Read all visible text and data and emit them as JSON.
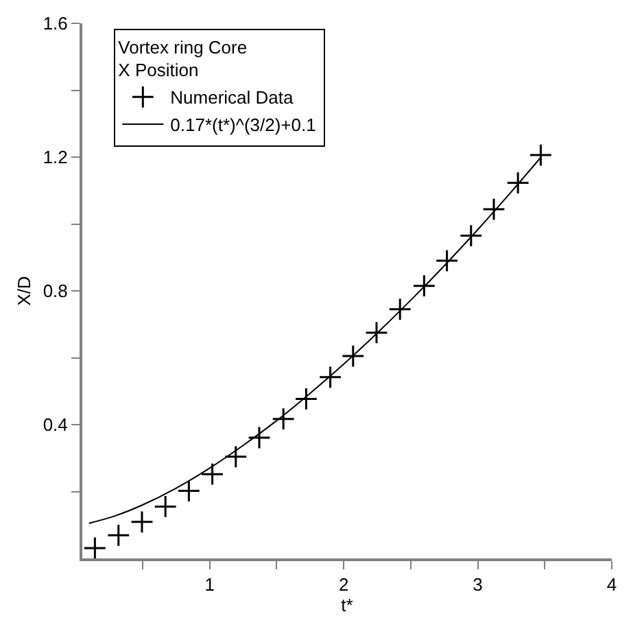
{
  "chart_data": {
    "type": "scatter",
    "xlabel": "t*",
    "ylabel": "X/D",
    "legend_title": "Vortex ring Core\nX Position",
    "xlim": [
      0.05,
      4
    ],
    "xticks": [
      {
        "value": 0.5,
        "label": null
      },
      1,
      {
        "value": 1.5,
        "label": null
      },
      2,
      {
        "value": 2.5,
        "label": null
      },
      3,
      {
        "value": 3.5,
        "label": null
      },
      4
    ],
    "ylim": [
      0,
      1.6
    ],
    "yticks": [
      {
        "value": 0.2,
        "label": null
      },
      0.4,
      {
        "value": 0.6,
        "label": null
      },
      0.8,
      {
        "value": 1.0,
        "label": null
      },
      1.2,
      {
        "value": 1.4,
        "label": null
      },
      1.6
    ],
    "legend": "top left",
    "series": [
      {
        "name": "Numerical Data",
        "marker": "cross",
        "color": "#000000",
        "x": [
          0.144,
          0.32,
          0.495,
          0.67,
          0.845,
          1.02,
          1.195,
          1.37,
          1.55,
          1.72,
          1.9,
          2.07,
          2.245,
          2.42,
          2.6,
          2.77,
          2.95,
          3.12,
          3.3,
          3.47
        ],
        "values": [
          0.031,
          0.069,
          0.109,
          0.155,
          0.202,
          0.252,
          0.304,
          0.361,
          0.417,
          0.477,
          0.542,
          0.605,
          0.675,
          0.745,
          0.815,
          0.89,
          0.965,
          1.044,
          1.123,
          1.206
        ]
      },
      {
        "name": "0.17*(t*)^(3/2)+0.1",
        "type": "line",
        "marker": "none",
        "line_style": "solid",
        "color": "#000000",
        "x": [
          0.1,
          0.3,
          0.5,
          0.75,
          1.0,
          1.25,
          1.5,
          1.75,
          2.0,
          2.25,
          2.5,
          2.75,
          3.0,
          3.25,
          3.47
        ],
        "values": [
          0.105,
          0.128,
          0.16,
          0.21,
          0.27,
          0.338,
          0.412,
          0.494,
          0.581,
          0.674,
          0.772,
          0.875,
          0.983,
          1.096,
          1.199
        ]
      }
    ]
  }
}
